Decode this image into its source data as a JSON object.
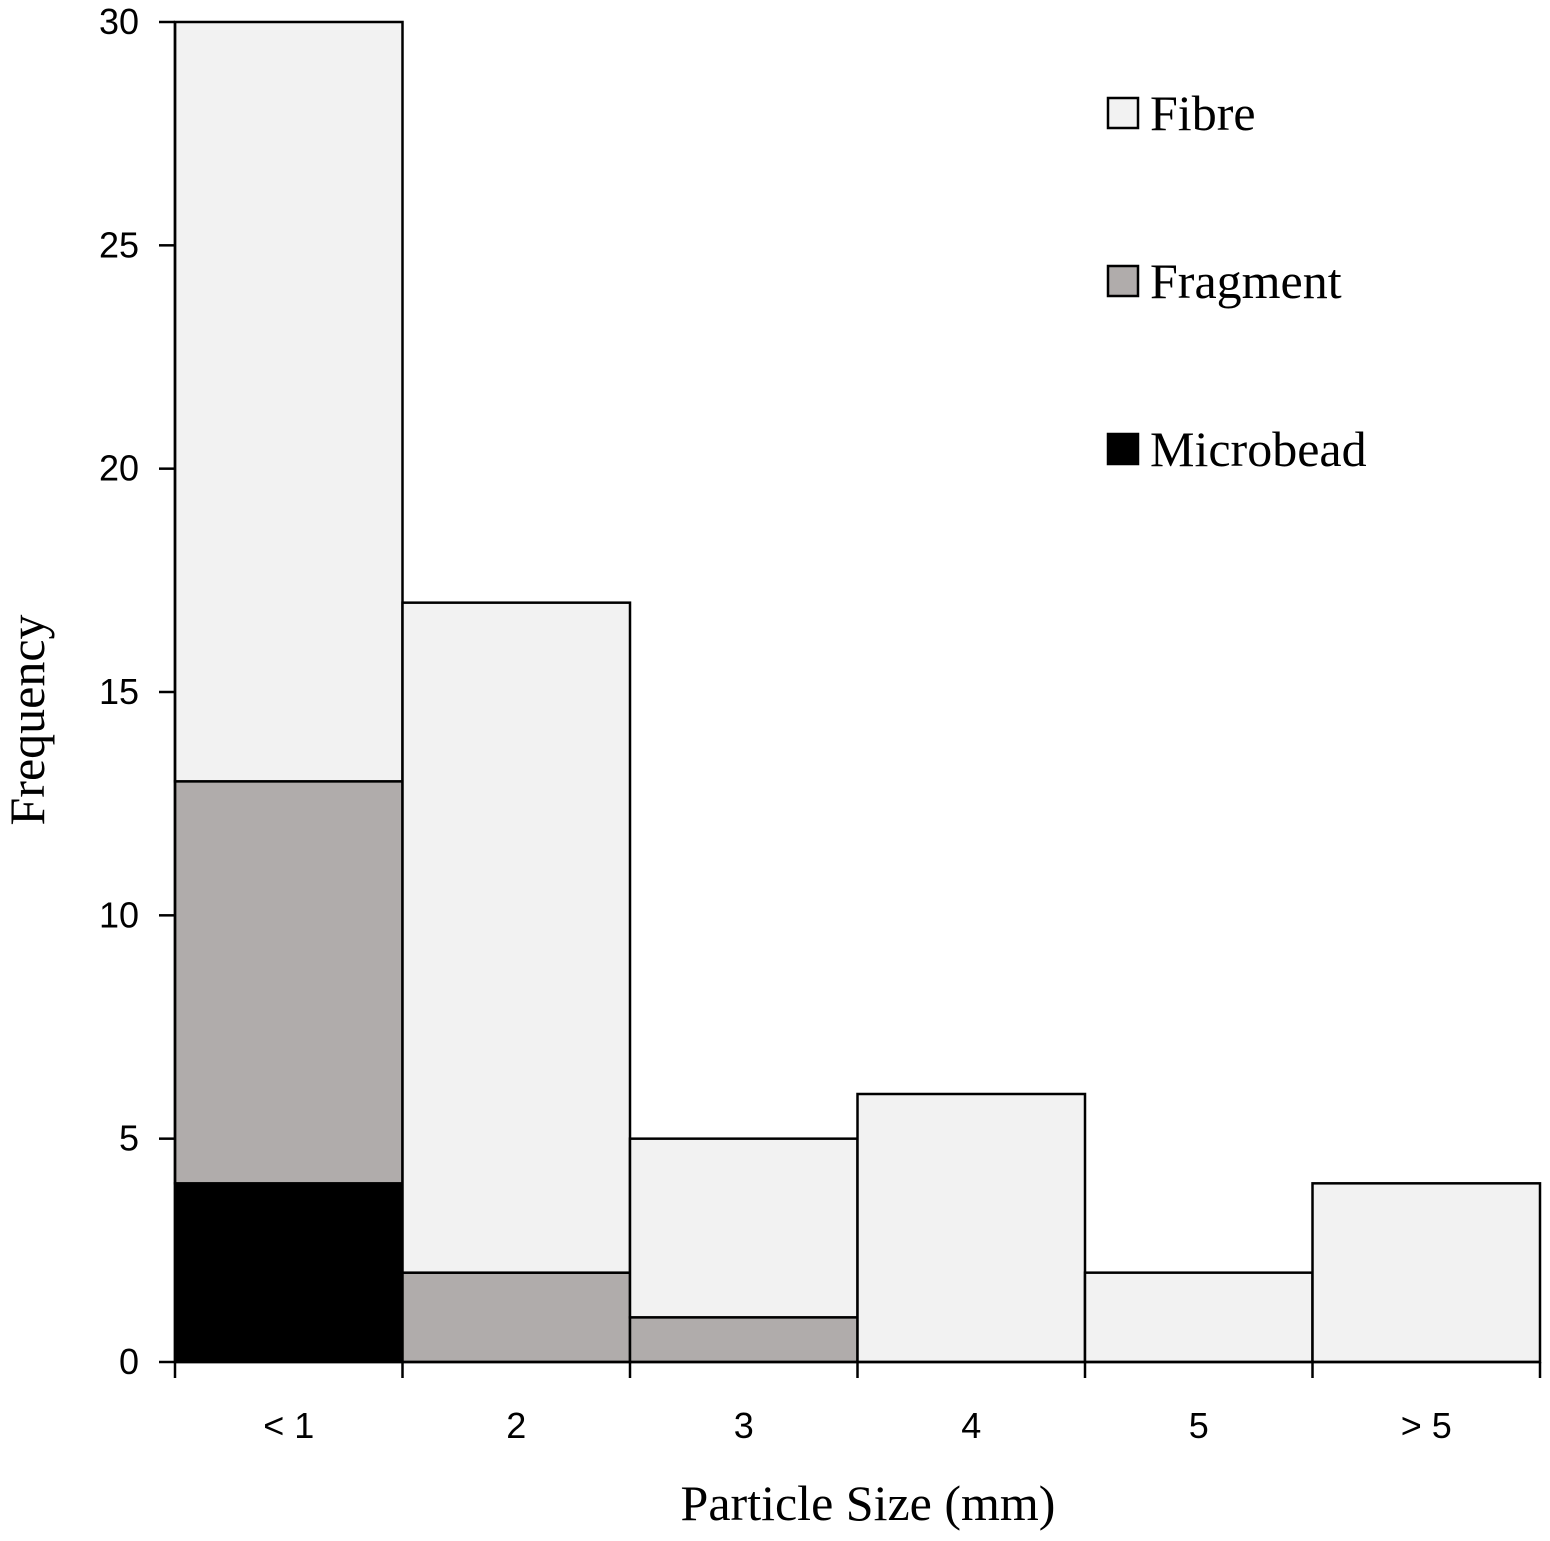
{
  "chart_data": {
    "type": "bar",
    "stacked": true,
    "bar_gap": "none (histogram style)",
    "categories": [
      "< 1",
      "2",
      "3",
      "4",
      "5",
      "> 5"
    ],
    "series": [
      {
        "name": "Microbead",
        "color": "#000000",
        "values": [
          4,
          0,
          0,
          0,
          0,
          0
        ]
      },
      {
        "name": "Fragment",
        "color": "#b0acab",
        "values": [
          9,
          2,
          1,
          0,
          0,
          0
        ]
      },
      {
        "name": "Fibre",
        "color": "#f2f2f2",
        "values": [
          17,
          15,
          4,
          6,
          2,
          4
        ]
      }
    ],
    "title": "",
    "xlabel": "Particle Size (mm)",
    "ylabel": "Frequency",
    "ylim": [
      0,
      30
    ],
    "yticks": [
      "0",
      "5",
      "10",
      "15",
      "20",
      "25",
      "30"
    ],
    "grid": false,
    "legend": {
      "position": "top-right",
      "entries": [
        {
          "name": "Fibre",
          "color": "#f2f2f2"
        },
        {
          "name": "Fragment",
          "color": "#b0acab"
        },
        {
          "name": "Microbead",
          "color": "#000000"
        }
      ]
    },
    "outline_color": "#000000"
  }
}
